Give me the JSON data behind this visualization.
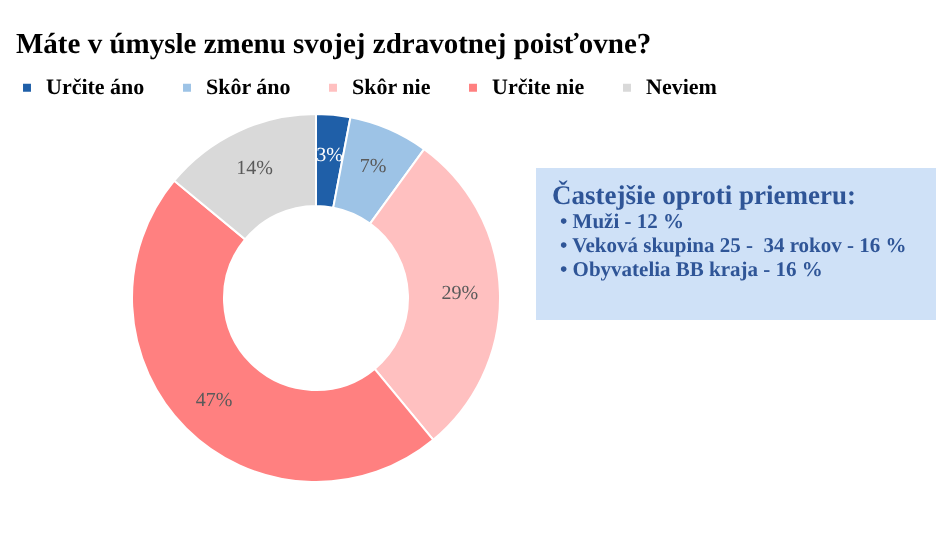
{
  "chart_data": {
    "type": "donut",
    "title": "Máte v úmysle zmenu svojej zdravotnej poisťovne?",
    "categories": [
      "Určite áno",
      "Skôr áno",
      "Skôr nie",
      "Určite nie",
      "Neviem"
    ],
    "values": [
      3,
      7,
      29,
      47,
      14
    ],
    "colors": [
      "#1f5fa8",
      "#9dc3e6",
      "#ffc0c0",
      "#ff8080",
      "#d9d9d9"
    ],
    "value_labels": [
      "3%",
      "7%",
      "29%",
      "47%",
      "14%"
    ],
    "legend": "top",
    "annotations": [
      "Častejšie oproti priemeru:",
      "• Muži - 12 %",
      "• Veková skupina 25 -  34 rokov - 16 %",
      "• Obyvatelia BB kraja - 16 %"
    ]
  }
}
